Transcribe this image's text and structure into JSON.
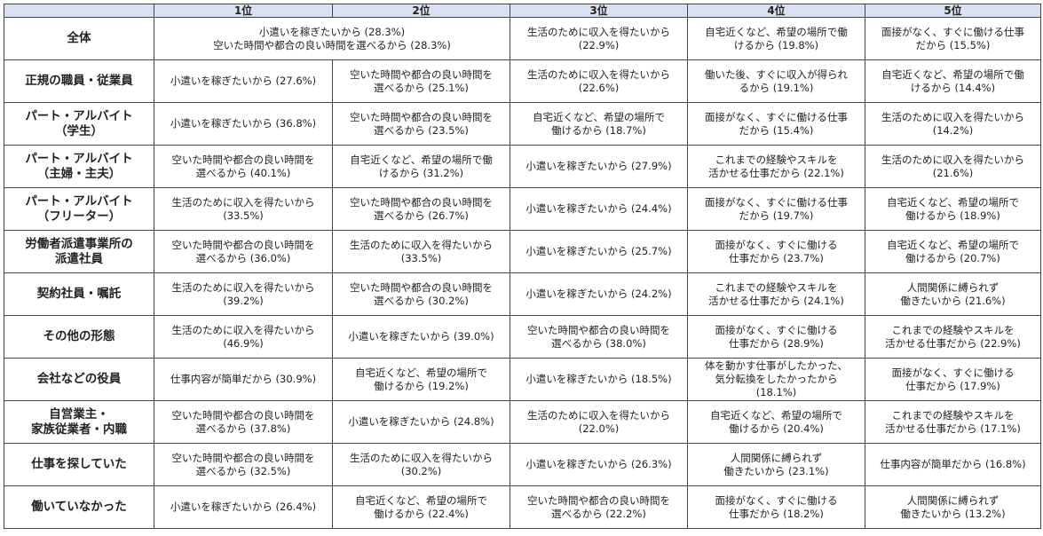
{
  "header": {
    "corner": "",
    "ranks": [
      "1位",
      "2位",
      "3位",
      "4位",
      "5位"
    ]
  },
  "rows": [
    {
      "label": "全体",
      "merged_first": "小遣いを稼ぎたいから (28.3%)\n空いた時間や都合の良い時間を選べるから (28.3%)",
      "cells": [
        "",
        "",
        "生活のために収入を得たいから\n(22.9%)",
        "自宅近くなど、希望の場所で働\nけるから (19.8%)",
        "面接がなく、すぐに働ける仕事\nだから (15.5%)"
      ]
    },
    {
      "label": "正規の職員・従業員",
      "cells": [
        "小遣いを稼ぎたいから (27.6%)",
        "空いた時間や都合の良い時間を\n選べるから (25.1%)",
        "生活のために収入を得たいから\n(22.6%)",
        "働いた後、すぐに収入が得られ\nるから (19.1%)",
        "自宅近くなど、希望の場所で働\nけるから (14.4%)"
      ]
    },
    {
      "label": "パート・アルバイト\n（学生）",
      "cells": [
        "小遣いを稼ぎたいから (36.8%)",
        "空いた時間や都合の良い時間を\n選べるから (23.5%)",
        "自宅近くなど、希望の場所で\n働けるから (18.7%)",
        "面接がなく、すぐに働ける仕事\nだから (15.4%)",
        "生活のために収入を得たいから\n(14.2%)"
      ]
    },
    {
      "label": "パート・アルバイト\n（主婦・主夫）",
      "cells": [
        "空いた時間や都合の良い時間を\n選べるから (40.1%)",
        "自宅近くなど、希望の場所で働\nけるから (31.2%)",
        "小遣いを稼ぎたいから (27.9%)",
        "これまでの経験やスキルを\n活かせる仕事だから (22.1%)",
        "生活のために収入を得たいから\n(21.6%)"
      ]
    },
    {
      "label": "パート・アルバイト\n（フリーター）",
      "cells": [
        "生活のために収入を得たいから\n(33.5%)",
        "空いた時間や都合の良い時間を\n選べるから (26.7%)",
        "小遣いを稼ぎたいから (24.4%)",
        "面接がなく、すぐに働ける仕事\nだから (19.7%)",
        "自宅近くなど、希望の場所で\n働けるから (18.9%)"
      ]
    },
    {
      "label": "労働者派遣事業所の\n派遣社員",
      "cells": [
        "空いた時間や都合の良い時間を\n選べるから (36.0%)",
        "生活のために収入を得たいから\n(33.5%)",
        "小遣いを稼ぎたいから (25.7%)",
        "面接がなく、すぐに働ける\n仕事だから (23.7%)",
        "自宅近くなど、希望の場所で\n働けるから (20.7%)"
      ]
    },
    {
      "label": "契約社員・嘱託",
      "cells": [
        "生活のために収入を得たいから\n(39.2%)",
        "空いた時間や都合の良い時間を\n選べるから (30.2%)",
        "小遣いを稼ぎたいから (24.2%)",
        "これまでの経験やスキルを\n活かせる仕事だから (24.1%)",
        "人間関係に縛られず\n働きたいから (21.6%)"
      ]
    },
    {
      "label": "その他の形態",
      "cells": [
        "生活のために収入を得たいから\n(46.9%)",
        "小遣いを稼ぎたいから (39.0%)",
        "空いた時間や都合の良い時間を\n選べるから (38.0%)",
        "面接がなく、すぐに働ける\n仕事だから (28.9%)",
        "これまでの経験やスキルを\n活かせる仕事だから (22.9%)"
      ]
    },
    {
      "label": "会社などの役員",
      "cells": [
        "仕事内容が簡単だから (30.9%)",
        "自宅近くなど、希望の場所で\n働けるから (19.2%)",
        "小遣いを稼ぎたいから (18.5%)",
        "体を動かす仕事がしたかった、\n気分転換をしたかったから\n(18.1%)",
        "面接がなく、すぐに働ける\n仕事だから (17.9%)"
      ]
    },
    {
      "label": "自営業主・\n家族従業者・内職",
      "cells": [
        "空いた時間や都合の良い時間を\n選べるから (37.8%)",
        "小遣いを稼ぎたいから (24.8%)",
        "生活のために収入を得たいから\n(22.0%)",
        "自宅近くなど、希望の場所で\n働けるから (20.4%)",
        "これまでの経験やスキルを\n活かせる仕事だから (17.1%)"
      ]
    },
    {
      "label": "仕事を探していた",
      "cells": [
        "空いた時間や都合の良い時間を\n選べるから (32.5%)",
        "生活のために収入を得たいから\n(30.2%)",
        "小遣いを稼ぎたいから (26.3%)",
        "人間関係に縛られず\n働きたいから (23.1%)",
        "仕事内容が簡単だから (16.8%)"
      ]
    },
    {
      "label": "働いていなかった",
      "cells": [
        "小遣いを稼ぎたいから (26.4%)",
        "自宅近くなど、希望の場所で\n働けるから (22.4%)",
        "空いた時間や都合の良い時間を\n選べるから (22.2%)",
        "面接がなく、すぐに働ける\n仕事だから (18.2%)",
        "人間関係に縛られず\n働きたいから (13.2%)"
      ]
    }
  ],
  "colors": {
    "header_bg": "#d9e1f2",
    "border": "#444444"
  }
}
